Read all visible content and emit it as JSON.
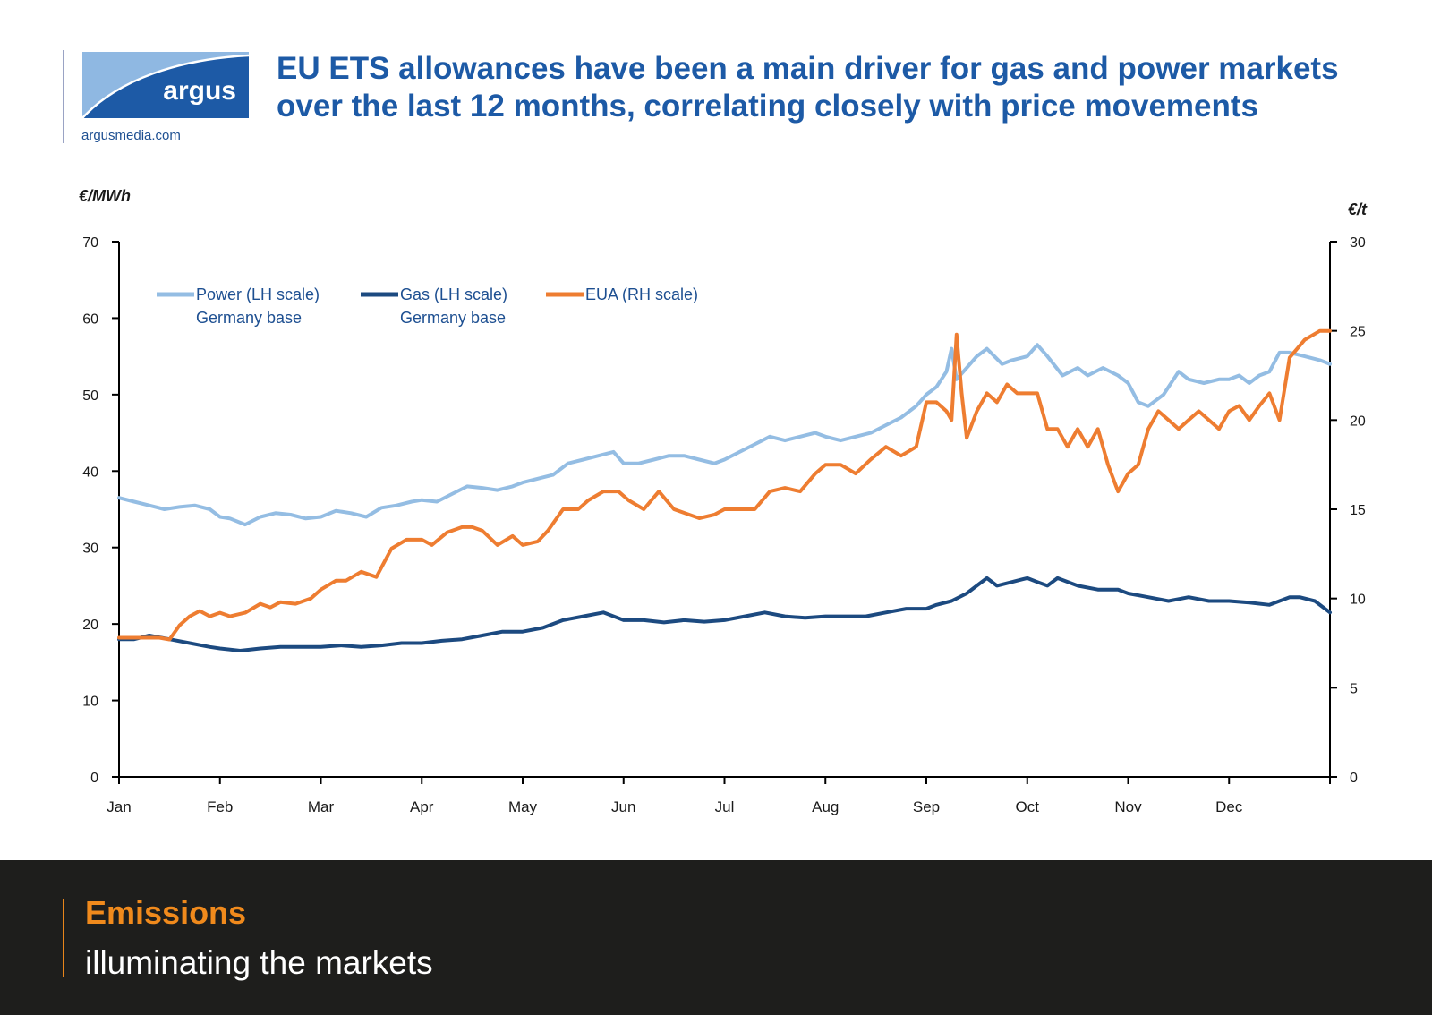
{
  "header": {
    "logo_text": "argus",
    "site": "argusmedia.com",
    "title_line1": "EU ETS allowances have been a main driver for gas and power markets",
    "title_line2": "over the last 12 months, correlating closely with price movements"
  },
  "footer": {
    "title": "Emissions",
    "subtitle": "illuminating the markets"
  },
  "colors": {
    "brand_blue": "#1d5aa6",
    "power": "#94bde3",
    "gas": "#1c4a80",
    "eua": "#ee7d31",
    "footer_bg": "#1e1e1c",
    "footer_accent": "#f08a1c"
  },
  "chart_data": {
    "type": "line",
    "ylabel_left": "€/MWh",
    "ylabel_right": "€/t",
    "ylim_left": [
      0,
      70
    ],
    "ylim_right": [
      0,
      30
    ],
    "yticks_left": [
      0,
      10,
      20,
      30,
      40,
      50,
      60,
      70
    ],
    "yticks_right": [
      0,
      5,
      10,
      15,
      20,
      25,
      30
    ],
    "x_unit": "month",
    "xlim": [
      0,
      12
    ],
    "months": [
      "Jan",
      "Feb",
      "Mar",
      "Apr",
      "May",
      "Jun",
      "Jul",
      "Aug",
      "Sep",
      "Oct",
      "Nov",
      "Dec"
    ],
    "grid": false,
    "legend_position": "top-left",
    "series": [
      {
        "name": "Power (LH scale)",
        "name_line2": "Germany base",
        "axis": "left",
        "x": [
          0,
          0.15,
          0.3,
          0.45,
          0.6,
          0.75,
          0.9,
          1.0,
          1.1,
          1.25,
          1.4,
          1.55,
          1.7,
          1.85,
          2.0,
          2.15,
          2.3,
          2.45,
          2.6,
          2.75,
          2.9,
          3.0,
          3.15,
          3.3,
          3.45,
          3.6,
          3.75,
          3.9,
          4.0,
          4.15,
          4.3,
          4.45,
          4.6,
          4.75,
          4.9,
          5.0,
          5.15,
          5.3,
          5.45,
          5.6,
          5.75,
          5.9,
          6.0,
          6.15,
          6.3,
          6.45,
          6.6,
          6.75,
          6.9,
          7.0,
          7.15,
          7.3,
          7.45,
          7.6,
          7.75,
          7.9,
          8.0,
          8.1,
          8.2,
          8.25,
          8.3,
          8.4,
          8.5,
          8.6,
          8.75,
          8.85,
          9.0,
          9.1,
          9.2,
          9.35,
          9.5,
          9.6,
          9.75,
          9.9,
          10.0,
          10.1,
          10.2,
          10.35,
          10.5,
          10.6,
          10.75,
          10.9,
          11.0,
          11.1,
          11.2,
          11.3,
          11.4,
          11.5,
          11.6,
          11.75,
          11.9,
          12.0
        ],
        "y": [
          36.5,
          36.0,
          35.5,
          35.0,
          35.3,
          35.5,
          35.0,
          34.0,
          33.8,
          33.0,
          34.0,
          34.5,
          34.3,
          33.8,
          34.0,
          34.8,
          34.5,
          34.0,
          35.2,
          35.5,
          36.0,
          36.2,
          36.0,
          37.0,
          38.0,
          37.8,
          37.5,
          38.0,
          38.5,
          39.0,
          39.5,
          41.0,
          41.5,
          42.0,
          42.5,
          41.0,
          41.0,
          41.5,
          42.0,
          42.0,
          41.5,
          41.0,
          41.5,
          42.5,
          43.5,
          44.5,
          44.0,
          44.5,
          45.0,
          44.5,
          44.0,
          44.5,
          45.0,
          46.0,
          47.0,
          48.5,
          50.0,
          51.0,
          53.0,
          56.0,
          52.0,
          53.5,
          55.0,
          56.0,
          54.0,
          54.5,
          55.0,
          56.5,
          55.0,
          52.5,
          53.5,
          52.5,
          53.5,
          52.5,
          51.5,
          49.0,
          48.5,
          50.0,
          53.0,
          52.0,
          51.5,
          52.0,
          52.0,
          52.5,
          51.5,
          52.5,
          53.0,
          55.5,
          55.5,
          55.0,
          54.5,
          54.0
        ]
      },
      {
        "name": "Gas (LH scale)",
        "name_line2": "Germany base",
        "axis": "left",
        "x": [
          0,
          0.15,
          0.3,
          0.5,
          0.7,
          0.9,
          1.0,
          1.2,
          1.4,
          1.6,
          1.8,
          2.0,
          2.2,
          2.4,
          2.6,
          2.8,
          3.0,
          3.2,
          3.4,
          3.6,
          3.8,
          4.0,
          4.2,
          4.4,
          4.6,
          4.8,
          5.0,
          5.2,
          5.4,
          5.6,
          5.8,
          6.0,
          6.2,
          6.4,
          6.6,
          6.8,
          7.0,
          7.2,
          7.4,
          7.6,
          7.8,
          8.0,
          8.1,
          8.25,
          8.4,
          8.5,
          8.6,
          8.7,
          8.85,
          9.0,
          9.1,
          9.2,
          9.3,
          9.5,
          9.7,
          9.9,
          10.0,
          10.2,
          10.4,
          10.6,
          10.8,
          11.0,
          11.2,
          11.4,
          11.5,
          11.6,
          11.7,
          11.85,
          12.0
        ],
        "y": [
          18.0,
          18.0,
          18.5,
          18.0,
          17.5,
          17.0,
          16.8,
          16.5,
          16.8,
          17.0,
          17.0,
          17.0,
          17.2,
          17.0,
          17.2,
          17.5,
          17.5,
          17.8,
          18.0,
          18.5,
          19.0,
          19.0,
          19.5,
          20.5,
          21.0,
          21.5,
          20.5,
          20.5,
          20.2,
          20.5,
          20.3,
          20.5,
          21.0,
          21.5,
          21.0,
          20.8,
          21.0,
          21.0,
          21.0,
          21.5,
          22.0,
          22.0,
          22.5,
          23.0,
          24.0,
          25.0,
          26.0,
          25.0,
          25.5,
          26.0,
          25.5,
          25.0,
          26.0,
          25.0,
          24.5,
          24.5,
          24.0,
          23.5,
          23.0,
          23.5,
          23.0,
          23.0,
          22.8,
          22.5,
          23.0,
          23.5,
          23.5,
          23.0,
          21.5
        ]
      },
      {
        "name": "EUA (RH scale)",
        "axis": "right",
        "x": [
          0,
          0.2,
          0.4,
          0.5,
          0.6,
          0.7,
          0.8,
          0.9,
          1.0,
          1.1,
          1.25,
          1.4,
          1.5,
          1.6,
          1.75,
          1.9,
          2.0,
          2.15,
          2.25,
          2.4,
          2.55,
          2.7,
          2.85,
          3.0,
          3.1,
          3.25,
          3.4,
          3.5,
          3.6,
          3.75,
          3.9,
          4.0,
          4.15,
          4.25,
          4.4,
          4.55,
          4.65,
          4.8,
          4.95,
          5.05,
          5.2,
          5.35,
          5.5,
          5.6,
          5.75,
          5.9,
          6.0,
          6.15,
          6.3,
          6.45,
          6.6,
          6.75,
          6.9,
          7.0,
          7.15,
          7.3,
          7.45,
          7.6,
          7.75,
          7.9,
          8.0,
          8.1,
          8.2,
          8.25,
          8.3,
          8.35,
          8.4,
          8.5,
          8.6,
          8.7,
          8.8,
          8.9,
          9.0,
          9.1,
          9.2,
          9.3,
          9.4,
          9.5,
          9.6,
          9.7,
          9.8,
          9.9,
          10.0,
          10.1,
          10.2,
          10.3,
          10.4,
          10.5,
          10.6,
          10.7,
          10.8,
          10.9,
          11.0,
          11.1,
          11.2,
          11.3,
          11.4,
          11.5,
          11.6,
          11.75,
          11.9,
          12.0
        ],
        "y": [
          7.8,
          7.8,
          7.8,
          7.7,
          8.5,
          9.0,
          9.3,
          9.0,
          9.2,
          9.0,
          9.2,
          9.7,
          9.5,
          9.8,
          9.7,
          10.0,
          10.5,
          11.0,
          11.0,
          11.5,
          11.2,
          12.8,
          13.3,
          13.3,
          13.0,
          13.7,
          14.0,
          14.0,
          13.8,
          13.0,
          13.5,
          13.0,
          13.2,
          13.8,
          15.0,
          15.0,
          15.5,
          16.0,
          16.0,
          15.5,
          15.0,
          16.0,
          15.0,
          14.8,
          14.5,
          14.7,
          15.0,
          15.0,
          15.0,
          16.0,
          16.2,
          16.0,
          17.0,
          17.5,
          17.5,
          17.0,
          17.8,
          18.5,
          18.0,
          18.5,
          21.0,
          21.0,
          20.5,
          20.0,
          24.8,
          21.5,
          19.0,
          20.5,
          21.5,
          21.0,
          22.0,
          21.5,
          21.5,
          21.5,
          19.5,
          19.5,
          18.5,
          19.5,
          18.5,
          19.5,
          17.5,
          16.0,
          17.0,
          17.5,
          19.5,
          20.5,
          20.0,
          19.5,
          20.0,
          20.5,
          20.0,
          19.5,
          20.5,
          20.8,
          20.0,
          20.8,
          21.5,
          20.0,
          23.5,
          24.5,
          25.0,
          25.0
        ]
      }
    ]
  }
}
